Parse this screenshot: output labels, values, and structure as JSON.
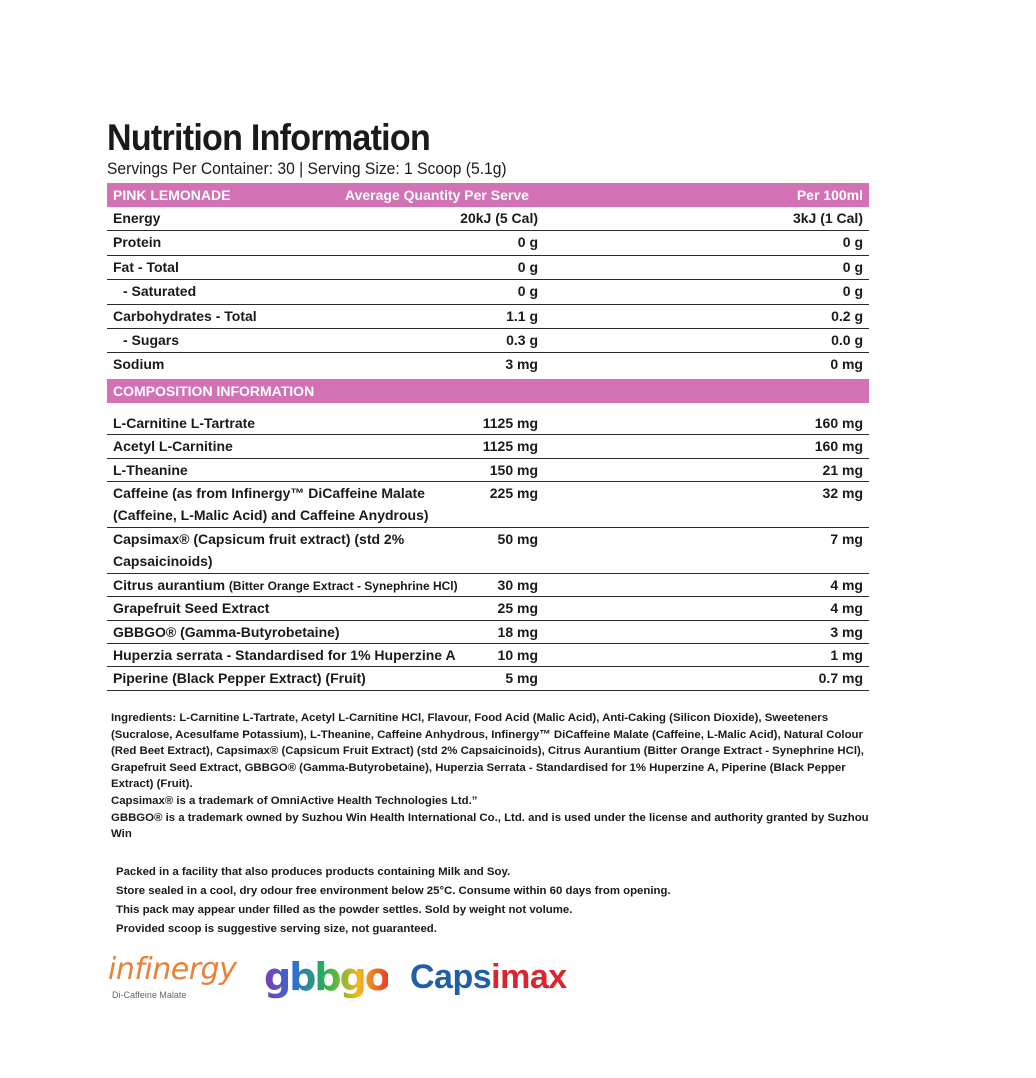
{
  "title": "Nutrition Information",
  "subtitle": "Servings Per Container: 30 | Serving Size: 1 Scoop (5.1g)",
  "header": {
    "flavor": "PINK LEMONADE",
    "per_serve": "Average Quantity Per Serve",
    "per_100": "Per 100ml"
  },
  "nutrition": [
    {
      "name": "Energy",
      "serve": "20kJ (5 Cal)",
      "per100": "3kJ (1 Cal)"
    },
    {
      "name": "Protein",
      "serve": "0 g",
      "per100": "0 g"
    },
    {
      "name": "Fat - Total",
      "serve": "0 g",
      "per100": "0 g"
    },
    {
      "name": "- Saturated",
      "serve": "0 g",
      "per100": "0 g"
    },
    {
      "name": "Carbohydrates - Total",
      "serve": "1.1 g",
      "per100": "0.2 g"
    },
    {
      "name": "- Sugars",
      "serve": "0.3 g",
      "per100": "0.0 g"
    },
    {
      "name": "Sodium",
      "serve": "3 mg",
      "per100": "0 mg"
    }
  ],
  "composition_header": "COMPOSITION INFORMATION",
  "composition": [
    {
      "name": "L-Carnitine L-Tartrate",
      "serve": "1125 mg",
      "per100": "160 mg"
    },
    {
      "name": "Acetyl L-Carnitine",
      "serve": "1125 mg",
      "per100": "160 mg"
    },
    {
      "name": "L-Theanine",
      "serve": "150 mg",
      "per100": "21 mg"
    },
    {
      "name": "Caffeine (as from Infinergy™ DiCaffeine Malate (Caffeine, L-Malic Acid) and Caffeine Anydrous)",
      "serve": "225 mg",
      "per100": "32 mg"
    },
    {
      "name": "Capsimax® (Capsicum fruit extract) (std 2% Capsaicinoids)",
      "serve": "50 mg",
      "per100": "7 mg"
    },
    {
      "name": "Citrus aurantium",
      "name_note": "(Bitter Orange Extract - Synephrine HCl)",
      "serve": "30 mg",
      "per100": "4 mg"
    },
    {
      "name": "Grapefruit Seed Extract",
      "serve": "25 mg",
      "per100": "4 mg"
    },
    {
      "name": "GBBGO® (Gamma-Butyrobetaine)",
      "serve": "18 mg",
      "per100": "3 mg"
    },
    {
      "name": "Huperzia serrata - Standardised for 1% Huperzine A",
      "serve": "10 mg",
      "per100": "1 mg"
    },
    {
      "name": "Piperine (Black Pepper Extract) (Fruit)",
      "serve": "5 mg",
      "per100": "0.7 mg"
    }
  ],
  "ingredients": "Ingredients: L-Carnitine L-Tartrate, Acetyl L-Carnitine HCl, Flavour, Food Acid (Malic Acid), Anti-Caking (Silicon Dioxide), Sweeteners (Sucralose, Acesulfame Potassium), L-Theanine, Caffeine Anhydrous, Infinergy™ DiCaffeine Malate (Caffeine, L-Malic Acid), Natural Colour (Red Beet Extract), Capsimax® (Capsicum Fruit Extract) (std 2% Capsaicinoids), Citrus Aurantium (Bitter Orange Extract - Synephrine HCl), Grapefruit Seed Extract, GBBGO® (Gamma-Butyrobetaine), Huperzia Serrata - Standardised for 1% Huperzine A, Piperine (Black Pepper Extract) (Fruit).",
  "trademark_1": "Capsimax® is a trademark of OmniActive Health Technologies Ltd.”",
  "trademark_2": "GBBGO® is a trademark owned by Suzhou Win Health International Co., Ltd. and is used under the license and authority granted by Suzhou Win",
  "notes": [
    "Packed in a facility that also produces products containing Milk and Soy.",
    "Store sealed in a cool, dry odour free environment below 25°C. Consume within 60 days from opening.",
    "This pack may appear under filled as the powder settles. Sold by weight not volume.",
    "Provided scoop is suggestive serving size, not guaranteed."
  ],
  "logos": {
    "infinergy": {
      "word": "infinergy",
      "sub": "Di-Caffeine Malate",
      "color": "#e8823a"
    },
    "gbbgo": {
      "word": "gbbgo"
    },
    "capsimax": {
      "word": "Capsimax",
      "color_blue": "#1f5fa8",
      "color_red": "#d8262e"
    }
  },
  "colors": {
    "band": "#d272b4"
  }
}
